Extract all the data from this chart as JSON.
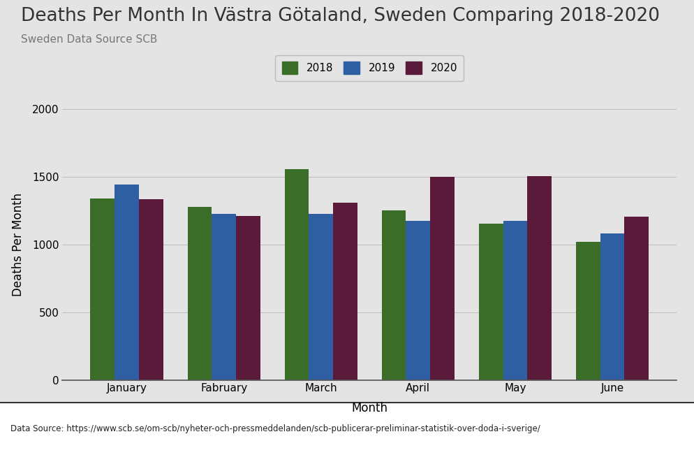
{
  "title": "Deaths Per Month In Västra Götaland, Sweden Comparing 2018-2020",
  "subtitle": "Sweden Data Source SCB",
  "xlabel": "Month",
  "ylabel": "Deaths Per Month",
  "footnote": "Data Source: https://www.scb.se/om-scb/nyheter-och-pressmeddelanden/scb-publicerar-preliminar-statistik-over-doda-i-sverige/",
  "categories": [
    "January",
    "Fabruary",
    "March",
    "April",
    "May",
    "June"
  ],
  "series": {
    "2018": [
      1340,
      1280,
      1555,
      1255,
      1155,
      1020
    ],
    "2019": [
      1445,
      1225,
      1225,
      1175,
      1175,
      1080
    ],
    "2020": [
      1335,
      1210,
      1310,
      1500,
      1505,
      1205
    ]
  },
  "colors": {
    "2018": "#3a6e28",
    "2019": "#2e5fa3",
    "2020": "#5c1a3a"
  },
  "ylim": [
    0,
    2000
  ],
  "yticks": [
    0,
    500,
    1000,
    1500,
    2000
  ],
  "background_color": "#e4e4e4",
  "plot_background": "#e4e4e4",
  "title_fontsize": 19,
  "subtitle_fontsize": 11,
  "axis_label_fontsize": 12,
  "tick_fontsize": 11,
  "legend_fontsize": 11,
  "bar_width": 0.25,
  "grid_color": "#c0c0c0"
}
